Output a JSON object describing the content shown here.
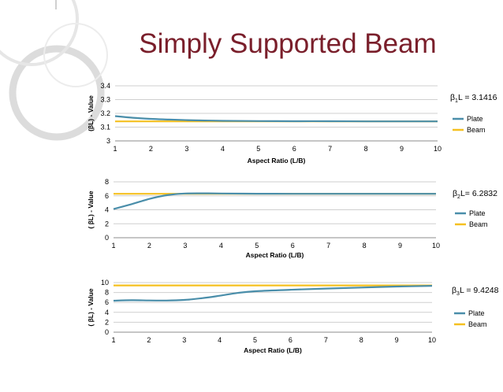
{
  "slide": {
    "title": "Simply Supported Beam"
  },
  "chart_data": [
    {
      "type": "line",
      "x": [
        1,
        1.5,
        2,
        2.5,
        3,
        3.5,
        4,
        5,
        6,
        7,
        8,
        9,
        10
      ],
      "series": [
        {
          "name": "Plate",
          "color": "#4a8eaa",
          "values": [
            3.18,
            3.168,
            3.16,
            3.155,
            3.151,
            3.148,
            3.146,
            3.144,
            3.143,
            3.143,
            3.142,
            3.142,
            3.142
          ]
        },
        {
          "name": "Beam",
          "color": "#f5c020",
          "values": [
            3.1416,
            3.1416,
            3.1416,
            3.1416,
            3.1416,
            3.1416,
            3.1416,
            3.1416,
            3.1416,
            3.1416,
            3.1416,
            3.1416,
            3.1416
          ]
        }
      ],
      "xlabel": "Aspect Ratio (L/B)",
      "ylabel": "(βL) - Value",
      "xticks": [
        "1",
        "2",
        "3",
        "4",
        "5",
        "6",
        "7",
        "8",
        "9",
        "10"
      ],
      "yticks": [
        "3",
        "3.1",
        "3.2",
        "3.3",
        "3.4"
      ],
      "xlim": [
        1,
        10
      ],
      "ylim": [
        3,
        3.4
      ],
      "grid": true,
      "legend": "right",
      "annotation": {
        "beta": "β",
        "sub": "1",
        "rest": "L = 3.1416"
      }
    },
    {
      "type": "line",
      "x": [
        1,
        1.5,
        2,
        2.5,
        3,
        3.5,
        4,
        5,
        6,
        7,
        8,
        9,
        10
      ],
      "series": [
        {
          "name": "Plate",
          "color": "#4a8eaa",
          "values": [
            4.1,
            4.8,
            5.55,
            6.1,
            6.33,
            6.35,
            6.33,
            6.3,
            6.29,
            6.29,
            6.285,
            6.285,
            6.285
          ]
        },
        {
          "name": "Beam",
          "color": "#f5c020",
          "values": [
            6.2832,
            6.2832,
            6.2832,
            6.2832,
            6.2832,
            6.2832,
            6.2832,
            6.2832,
            6.2832,
            6.2832,
            6.2832,
            6.2832,
            6.2832
          ]
        }
      ],
      "xlabel": "Aspect Ratio (L/B)",
      "ylabel": "( βL) - Value",
      "xticks": [
        "1",
        "2",
        "3",
        "4",
        "5",
        "6",
        "7",
        "8",
        "9",
        "10"
      ],
      "yticks": [
        "0",
        "2",
        "4",
        "6",
        "8"
      ],
      "xlim": [
        1,
        10
      ],
      "ylim": [
        0,
        8
      ],
      "grid": true,
      "legend": "right",
      "annotation": {
        "beta": "β",
        "sub": "2",
        "rest": "L= 6.2832"
      }
    },
    {
      "type": "line",
      "x": [
        1,
        1.5,
        2,
        2.5,
        3,
        3.5,
        4,
        4.5,
        5,
        6,
        7,
        8,
        9,
        10
      ],
      "series": [
        {
          "name": "Plate",
          "color": "#4a8eaa",
          "values": [
            6.35,
            6.45,
            6.4,
            6.38,
            6.5,
            6.85,
            7.35,
            7.9,
            8.25,
            8.55,
            8.8,
            9.0,
            9.2,
            9.35
          ]
        },
        {
          "name": "Beam",
          "color": "#f5c020",
          "values": [
            9.4248,
            9.4248,
            9.4248,
            9.4248,
            9.4248,
            9.4248,
            9.4248,
            9.4248,
            9.4248,
            9.4248,
            9.4248,
            9.4248,
            9.4248,
            9.4248
          ]
        }
      ],
      "xlabel": "Aspect Ratio (L/B)",
      "ylabel": "( βL) - Value",
      "xticks": [
        "1",
        "2",
        "3",
        "4",
        "5",
        "6",
        "7",
        "8",
        "9",
        "10"
      ],
      "yticks": [
        "0",
        "2",
        "4",
        "6",
        "8",
        "10"
      ],
      "xlim": [
        1,
        10
      ],
      "ylim": [
        0,
        10
      ],
      "grid": true,
      "legend": "right",
      "annotation": {
        "beta": "β",
        "sub": "3",
        "rest": "L = 9.4248"
      }
    }
  ]
}
